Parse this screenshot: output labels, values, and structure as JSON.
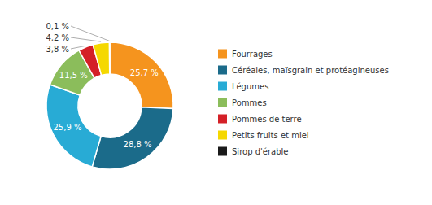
{
  "chart_data": {
    "type": "donut",
    "categories": [
      "Fourrages",
      "Céréales, maïs­grain et protéagineuses",
      "Légumes",
      "Pommes",
      "Pommes de terre",
      "Petits fruits et miel",
      "Sirop d'érable"
    ],
    "values": [
      25.7,
      28.8,
      25.9,
      11.5,
      3.8,
      4.2,
      0.1
    ],
    "value_labels": [
      "25,7 %",
      "28,8 %",
      "25,9 %",
      "11,5 %",
      "3,8 %",
      "4,2 %",
      "0,1 %"
    ],
    "colors": [
      "#F5941E",
      "#1B6B8A",
      "#28ABD5",
      "#8BBD5B",
      "#D42027",
      "#F5D800",
      "#1A1A1A"
    ],
    "data_labels": true,
    "legend": "right"
  }
}
